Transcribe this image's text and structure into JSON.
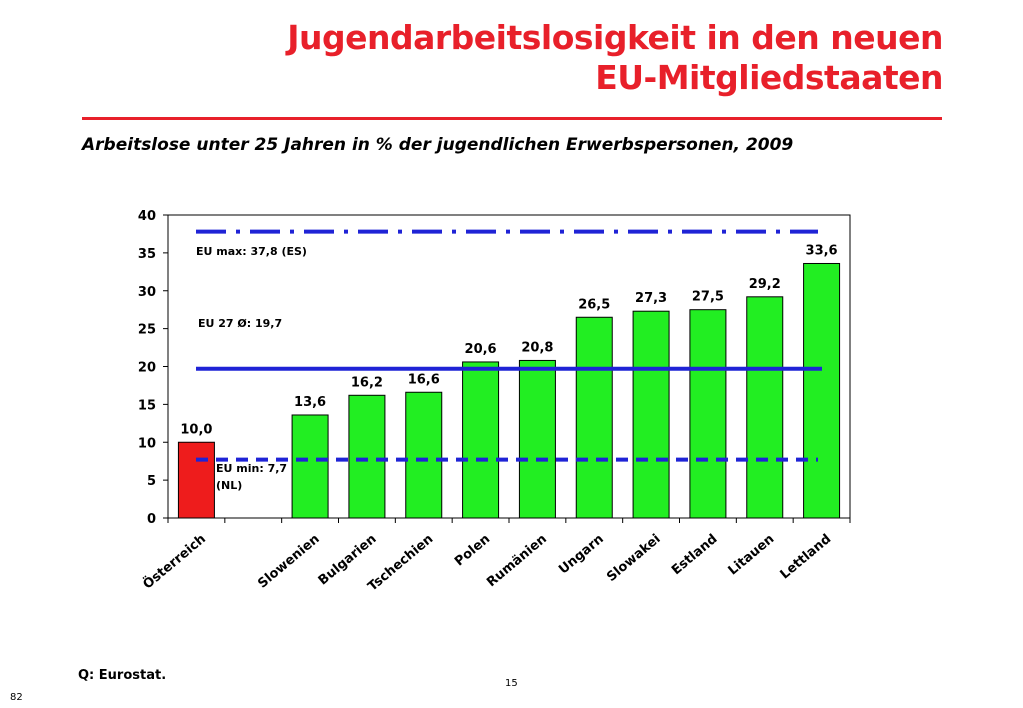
{
  "title_line1": "Jugendarbeitslosigkeit in den neuen",
  "title_line2": "EU-Mitgliedstaaten",
  "subtitle": "Arbeitslose unter 25 Jahren in % der jugendlichen Erwerbspersonen, 2009",
  "source": "Q: Eurostat.",
  "page_number": "15",
  "slide_number": "82",
  "colors": {
    "title": "#e8202a",
    "bar_highlight": "#ee1c1c",
    "bar_default": "#22ee22",
    "reference_lines": "#1f23d6"
  },
  "chart_data": {
    "type": "bar",
    "categories": [
      "Österreich",
      "",
      "Slowenien",
      "Bulgarien",
      "Tschechien",
      "Polen",
      "Rumänien",
      "Ungarn",
      "Slowakei",
      "Estland",
      "Litauen",
      "Lettland"
    ],
    "values": [
      10.0,
      null,
      13.6,
      16.2,
      16.6,
      20.6,
      20.8,
      26.5,
      27.3,
      27.5,
      29.2,
      33.6
    ],
    "value_labels": [
      "10,0",
      "",
      "13,6",
      "16,2",
      "16,6",
      "20,6",
      "20,8",
      "26,5",
      "27,3",
      "27,5",
      "29,2",
      "33,6"
    ],
    "highlight_index": 0,
    "ylim": [
      0,
      40
    ],
    "yticks": [
      0,
      5,
      10,
      15,
      20,
      25,
      30,
      35,
      40
    ],
    "grid": false,
    "reference_lines": [
      {
        "value": 37.8,
        "style": "dash-dot",
        "label": "EU max: 37,8 (ES)"
      },
      {
        "value": 19.7,
        "style": "solid",
        "label": "EU 27 Ø: 19,7"
      },
      {
        "value": 7.7,
        "style": "dashed",
        "label_lines": [
          "EU min: 7,7",
          "(NL)"
        ]
      }
    ]
  }
}
